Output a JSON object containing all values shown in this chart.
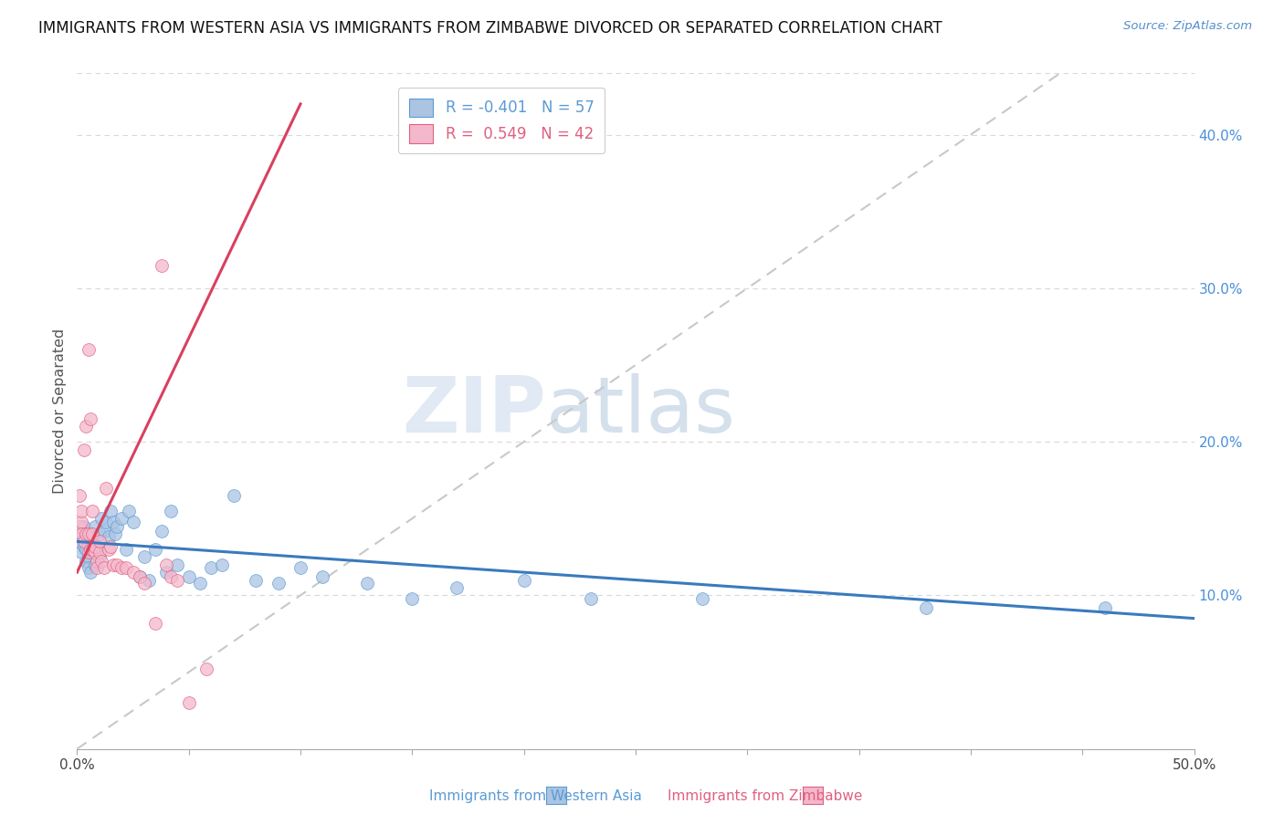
{
  "title": "IMMIGRANTS FROM WESTERN ASIA VS IMMIGRANTS FROM ZIMBABWE DIVORCED OR SEPARATED CORRELATION CHART",
  "source": "Source: ZipAtlas.com",
  "ylabel": "Divorced or Separated",
  "xlim": [
    0.0,
    0.5
  ],
  "ylim": [
    0.0,
    0.44
  ],
  "xticks": [
    0.0,
    0.05,
    0.1,
    0.15,
    0.2,
    0.25,
    0.3,
    0.35,
    0.4,
    0.45,
    0.5
  ],
  "xtick_labels": [
    "0.0%",
    "",
    "",
    "",
    "",
    "",
    "",
    "",
    "",
    "",
    "50.0%"
  ],
  "yticks_right": [
    0.1,
    0.2,
    0.3,
    0.4
  ],
  "ytick_labels_right": [
    "10.0%",
    "20.0%",
    "30.0%",
    "40.0%"
  ],
  "legend_blue_r": "-0.401",
  "legend_blue_n": "57",
  "legend_pink_r": "0.549",
  "legend_pink_n": "42",
  "blue_scatter_color": "#aac4e2",
  "blue_edge_color": "#5b9bd5",
  "pink_scatter_color": "#f4b8cc",
  "pink_edge_color": "#e06080",
  "blue_line_color": "#3a7abf",
  "pink_line_color": "#d9405e",
  "diag_line_color": "#c8c8c8",
  "watermark_zip": "ZIP",
  "watermark_atlas": "atlas",
  "blue_scatter_x": [
    0.001,
    0.002,
    0.002,
    0.003,
    0.003,
    0.004,
    0.004,
    0.005,
    0.005,
    0.005,
    0.006,
    0.006,
    0.006,
    0.007,
    0.007,
    0.008,
    0.008,
    0.009,
    0.01,
    0.01,
    0.011,
    0.012,
    0.013,
    0.014,
    0.015,
    0.016,
    0.017,
    0.018,
    0.02,
    0.022,
    0.023,
    0.025,
    0.028,
    0.03,
    0.032,
    0.035,
    0.038,
    0.04,
    0.042,
    0.045,
    0.05,
    0.055,
    0.06,
    0.065,
    0.07,
    0.08,
    0.09,
    0.1,
    0.11,
    0.13,
    0.15,
    0.17,
    0.2,
    0.23,
    0.28,
    0.38,
    0.46
  ],
  "blue_scatter_y": [
    0.135,
    0.14,
    0.128,
    0.132,
    0.145,
    0.13,
    0.122,
    0.135,
    0.125,
    0.118,
    0.14,
    0.128,
    0.115,
    0.138,
    0.13,
    0.145,
    0.12,
    0.132,
    0.14,
    0.125,
    0.15,
    0.142,
    0.148,
    0.138,
    0.155,
    0.148,
    0.14,
    0.145,
    0.15,
    0.13,
    0.155,
    0.148,
    0.112,
    0.125,
    0.11,
    0.13,
    0.142,
    0.115,
    0.155,
    0.12,
    0.112,
    0.108,
    0.118,
    0.12,
    0.165,
    0.11,
    0.108,
    0.118,
    0.112,
    0.108,
    0.098,
    0.105,
    0.11,
    0.098,
    0.098,
    0.092,
    0.092
  ],
  "pink_scatter_x": [
    0.001,
    0.001,
    0.002,
    0.002,
    0.002,
    0.003,
    0.003,
    0.004,
    0.004,
    0.005,
    0.005,
    0.005,
    0.006,
    0.006,
    0.007,
    0.007,
    0.007,
    0.008,
    0.008,
    0.009,
    0.009,
    0.01,
    0.01,
    0.011,
    0.012,
    0.013,
    0.014,
    0.015,
    0.016,
    0.018,
    0.02,
    0.022,
    0.025,
    0.028,
    0.03,
    0.035,
    0.038,
    0.04,
    0.042,
    0.045,
    0.05,
    0.058
  ],
  "pink_scatter_y": [
    0.145,
    0.165,
    0.148,
    0.155,
    0.14,
    0.135,
    0.195,
    0.14,
    0.21,
    0.128,
    0.14,
    0.26,
    0.13,
    0.215,
    0.13,
    0.155,
    0.14,
    0.128,
    0.132,
    0.122,
    0.118,
    0.128,
    0.135,
    0.122,
    0.118,
    0.17,
    0.13,
    0.132,
    0.12,
    0.12,
    0.118,
    0.118,
    0.115,
    0.112,
    0.108,
    0.082,
    0.315,
    0.12,
    0.112,
    0.11,
    0.03,
    0.052
  ],
  "pink_line_x0": 0.0,
  "pink_line_x1": 0.1,
  "blue_line_x0": 0.0,
  "blue_line_x1": 0.5,
  "blue_line_y0": 0.135,
  "blue_line_y1": 0.085,
  "pink_line_y0": 0.115,
  "pink_line_y1": 0.42
}
